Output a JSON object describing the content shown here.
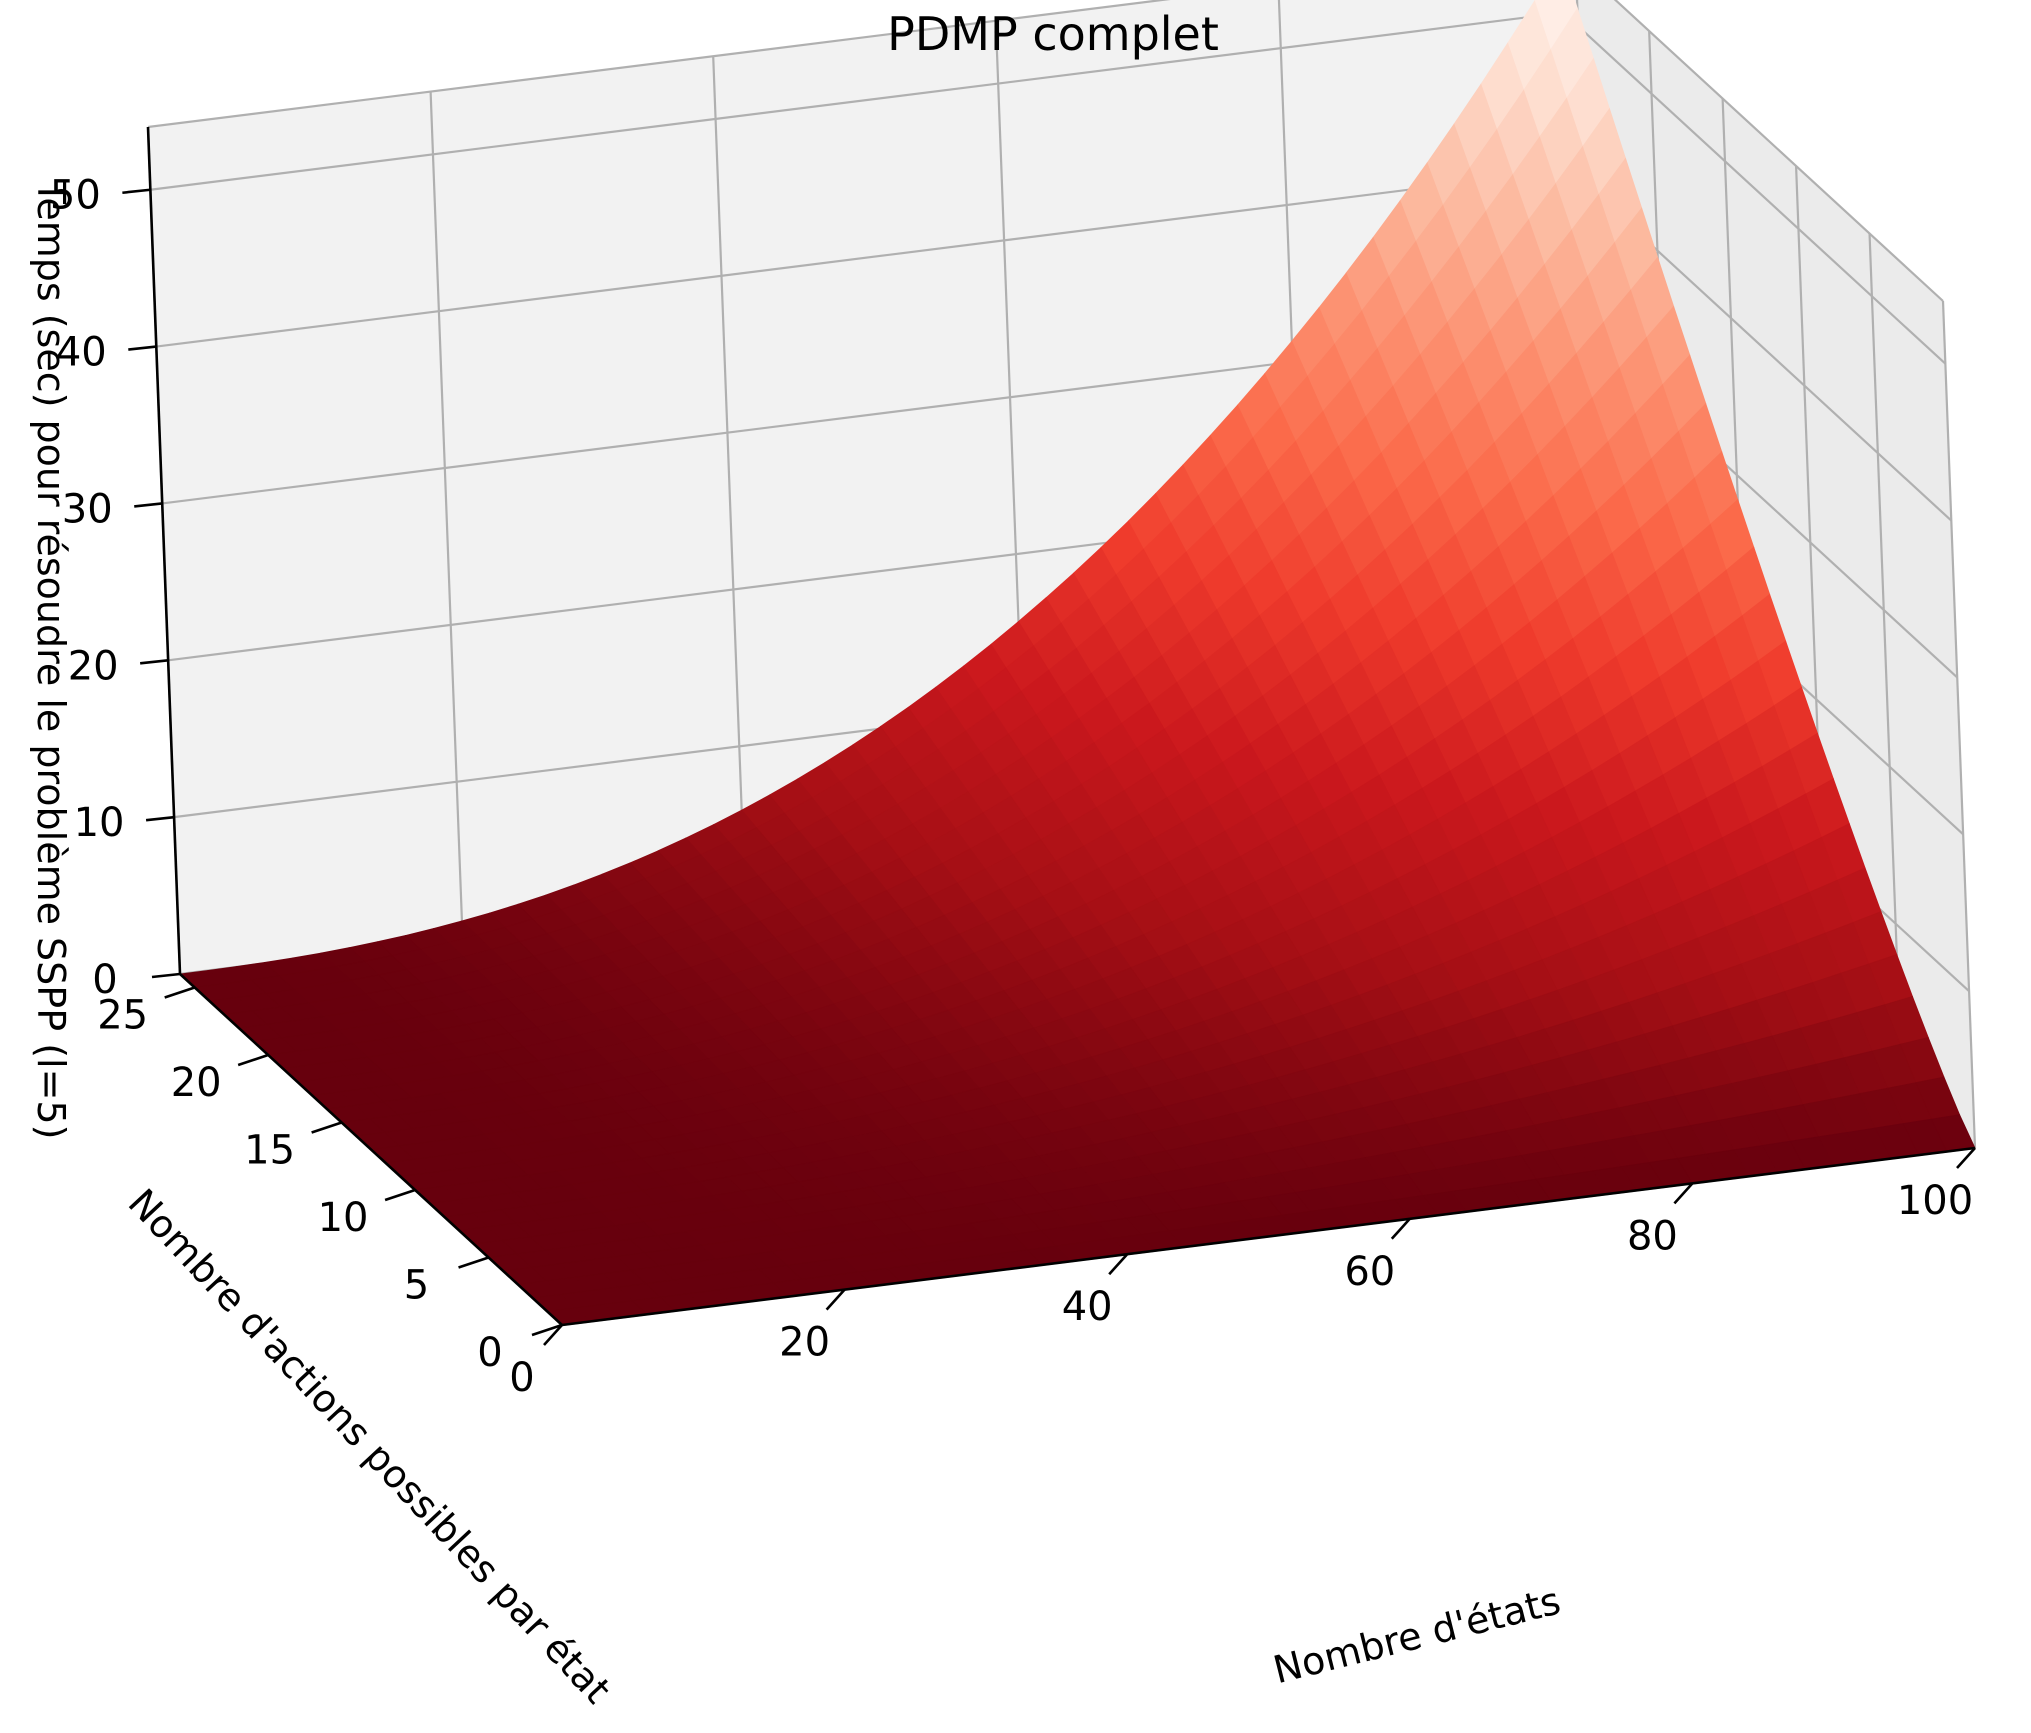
{
  "chart_data": {
    "type": "surface3d",
    "title": "PDMP complet",
    "xlabel": "Nombre d'états",
    "ylabel": "Nombre d'actions possibles par état",
    "zlabel": "Temps (sec) pour résoudre le problème SSPP (l=5)",
    "x_ticks": [
      0,
      20,
      40,
      60,
      80,
      100
    ],
    "y_ticks": [
      0,
      5,
      10,
      15,
      20,
      25
    ],
    "z_ticks": [
      0,
      10,
      20,
      30,
      40,
      50
    ],
    "x_range": [
      0,
      100
    ],
    "y_range": [
      0,
      26
    ],
    "z_range": [
      0,
      54
    ],
    "colormap": "Reds",
    "surface": {
      "x_min": 0,
      "x_max": 100,
      "y_min": 0,
      "y_max": 26,
      "z_max": 53.5,
      "exponent_x": 2.4,
      "exponent_y": 1.15
    },
    "grid": true,
    "pane_color": "#f2f2f2",
    "grid_color": "#b0b0b0"
  }
}
